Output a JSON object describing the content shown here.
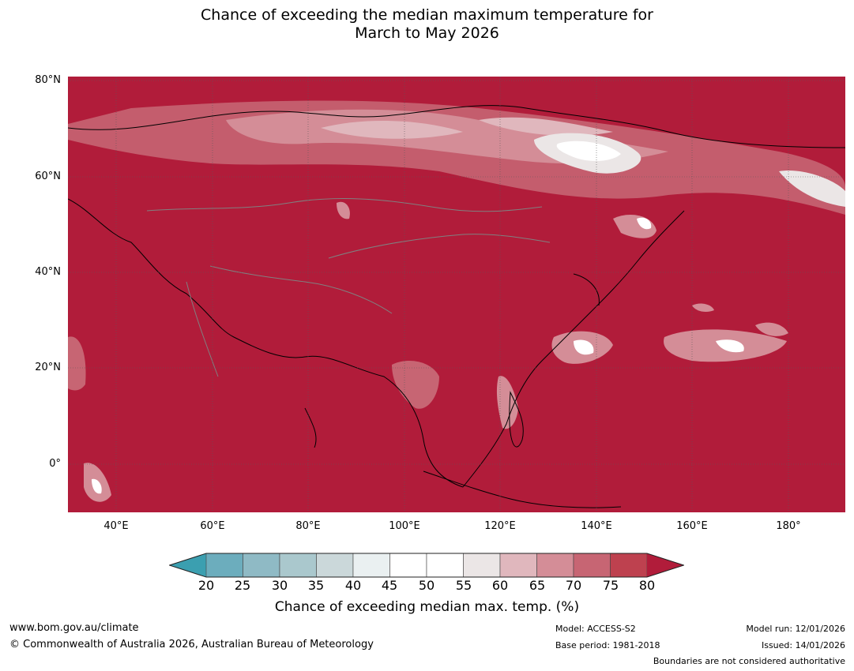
{
  "title": {
    "line1": "Chance of exceeding the median maximum temperature for",
    "line2": "March to May 2026"
  },
  "map": {
    "latitude_labels": [
      "80°N",
      "60°N",
      "40°N",
      "20°N",
      "0°"
    ],
    "longitude_labels": [
      "40°E",
      "60°E",
      "80°E",
      "100°E",
      "120°E",
      "140°E",
      "160°E",
      "180°"
    ],
    "background_color": "#b11c3a",
    "region": "Asia"
  },
  "colorbar": {
    "ticks": [
      "20",
      "25",
      "30",
      "35",
      "40",
      "45",
      "50",
      "55",
      "60",
      "65",
      "70",
      "75",
      "80"
    ],
    "colors": [
      "#3b9fb0",
      "#6cadbd",
      "#8fbac5",
      "#aac8cd",
      "#cbd8da",
      "#eaf0f1",
      "#ffffff",
      "#ffffff",
      "#ebe6e6",
      "#e0b7bd",
      "#d48d97",
      "#c76573",
      "#be414f",
      "#b11c3a"
    ],
    "label": "Chance of exceeding median max. temp. (%)"
  },
  "footer": {
    "website": "www.bom.gov.au/climate",
    "copyright": "© Commonwealth of Australia 2026, Australian Bureau of Meteorology",
    "model": "Model: ACCESS-S2",
    "base_period": "Base period: 1981-2018",
    "model_run": "Model run: 12/01/2026",
    "issued": "Issued: 14/01/2026",
    "disclaimer": "Boundaries are not considered authoritative"
  }
}
